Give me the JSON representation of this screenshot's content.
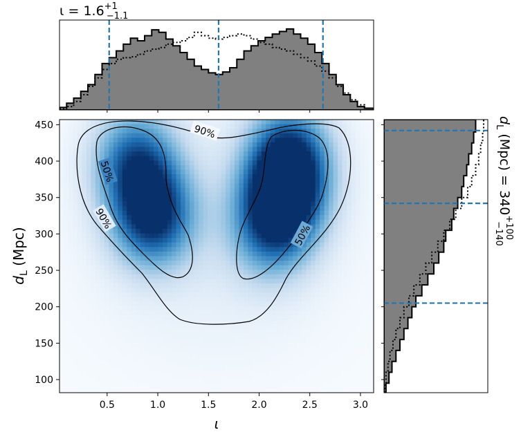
{
  "chart_data": {
    "type": "heatmap",
    "title_top": {
      "symbol": "ι",
      "value": "1.6",
      "upper": "+1",
      "lower": "−1.1"
    },
    "title_right": {
      "symbol": "d",
      "subscript": "L",
      "unit": "(Mpc)",
      "value": "340",
      "upper": "+100",
      "lower": "−140"
    },
    "xlabel": "ι",
    "ylabel": {
      "symbol": "d",
      "subscript": "L",
      "unit": "(Mpc)"
    },
    "xlim": [
      0.03,
      3.13
    ],
    "ylim": [
      82,
      457
    ],
    "xticks": [
      "0.5",
      "1.0",
      "1.5",
      "2.0",
      "2.5",
      "3.0"
    ],
    "yticks": [
      "100",
      "150",
      "200",
      "250",
      "300",
      "350",
      "400",
      "450"
    ],
    "contour_labels": [
      "90%",
      "50%",
      "50%",
      "90%",
      "50%"
    ],
    "colormap": "Blues",
    "density_peaks": [
      {
        "x": 0.95,
        "y": 325,
        "weight": 1.0
      },
      {
        "x": 0.78,
        "y": 400,
        "weight": 0.8
      },
      {
        "x": 2.25,
        "y": 355,
        "weight": 1.0
      },
      {
        "x": 2.3,
        "y": 410,
        "weight": 0.8
      },
      {
        "x": 2.12,
        "y": 305,
        "weight": 0.6
      }
    ],
    "iota_quantiles": [
      0.52,
      1.6,
      2.63
    ],
    "dl_quantiles": [
      205,
      342,
      442
    ],
    "iota_hist": {
      "color": "#808080",
      "bins": [
        0.03,
        0.1,
        0.17,
        0.24,
        0.31,
        0.38,
        0.45,
        0.52,
        0.59,
        0.66,
        0.73,
        0.8,
        0.87,
        0.94,
        1.01,
        1.08,
        1.15,
        1.22,
        1.29,
        1.36,
        1.43,
        1.5,
        1.57,
        1.64,
        1.71,
        1.78,
        1.85,
        1.92,
        1.99,
        2.06,
        2.13,
        2.2,
        2.27,
        2.34,
        2.41,
        2.48,
        2.55,
        2.62,
        2.69,
        2.76,
        2.83,
        2.9,
        2.97,
        3.04,
        3.13
      ],
      "posterior": [
        0.03,
        0.08,
        0.14,
        0.22,
        0.3,
        0.42,
        0.55,
        0.62,
        0.7,
        0.78,
        0.85,
        0.82,
        0.88,
        0.95,
        0.92,
        0.84,
        0.76,
        0.68,
        0.6,
        0.52,
        0.48,
        0.44,
        0.42,
        0.45,
        0.5,
        0.6,
        0.7,
        0.76,
        0.82,
        0.86,
        0.9,
        0.93,
        0.96,
        0.9,
        0.85,
        0.78,
        0.68,
        0.55,
        0.42,
        0.3,
        0.18,
        0.1,
        0.04,
        0.02
      ],
      "prior": [
        0.01,
        0.04,
        0.1,
        0.18,
        0.28,
        0.38,
        0.48,
        0.55,
        0.6,
        0.62,
        0.63,
        0.66,
        0.7,
        0.72,
        0.74,
        0.78,
        0.8,
        0.82,
        0.86,
        0.92,
        0.88,
        0.85,
        0.84,
        0.86,
        0.88,
        0.9,
        0.88,
        0.84,
        0.8,
        0.78,
        0.74,
        0.72,
        0.7,
        0.66,
        0.62,
        0.58,
        0.52,
        0.46,
        0.38,
        0.28,
        0.2,
        0.12,
        0.06,
        0.02
      ]
    },
    "dl_hist": {
      "color": "#808080",
      "bins": [
        82,
        95,
        110,
        125,
        140,
        155,
        170,
        185,
        200,
        215,
        230,
        245,
        260,
        275,
        290,
        305,
        320,
        335,
        350,
        365,
        380,
        395,
        410,
        425,
        440,
        457
      ],
      "posterior": [
        0.02,
        0.05,
        0.08,
        0.12,
        0.16,
        0.2,
        0.24,
        0.28,
        0.32,
        0.38,
        0.44,
        0.5,
        0.55,
        0.6,
        0.62,
        0.68,
        0.7,
        0.74,
        0.78,
        0.8,
        0.83,
        0.85,
        0.88,
        0.9,
        0.92
      ],
      "prior": [
        0.01,
        0.02,
        0.04,
        0.06,
        0.09,
        0.12,
        0.16,
        0.2,
        0.25,
        0.3,
        0.36,
        0.42,
        0.48,
        0.54,
        0.6,
        0.66,
        0.72,
        0.78,
        0.84,
        0.88,
        0.92,
        0.95,
        0.97,
        0.99,
        1.0
      ]
    }
  }
}
